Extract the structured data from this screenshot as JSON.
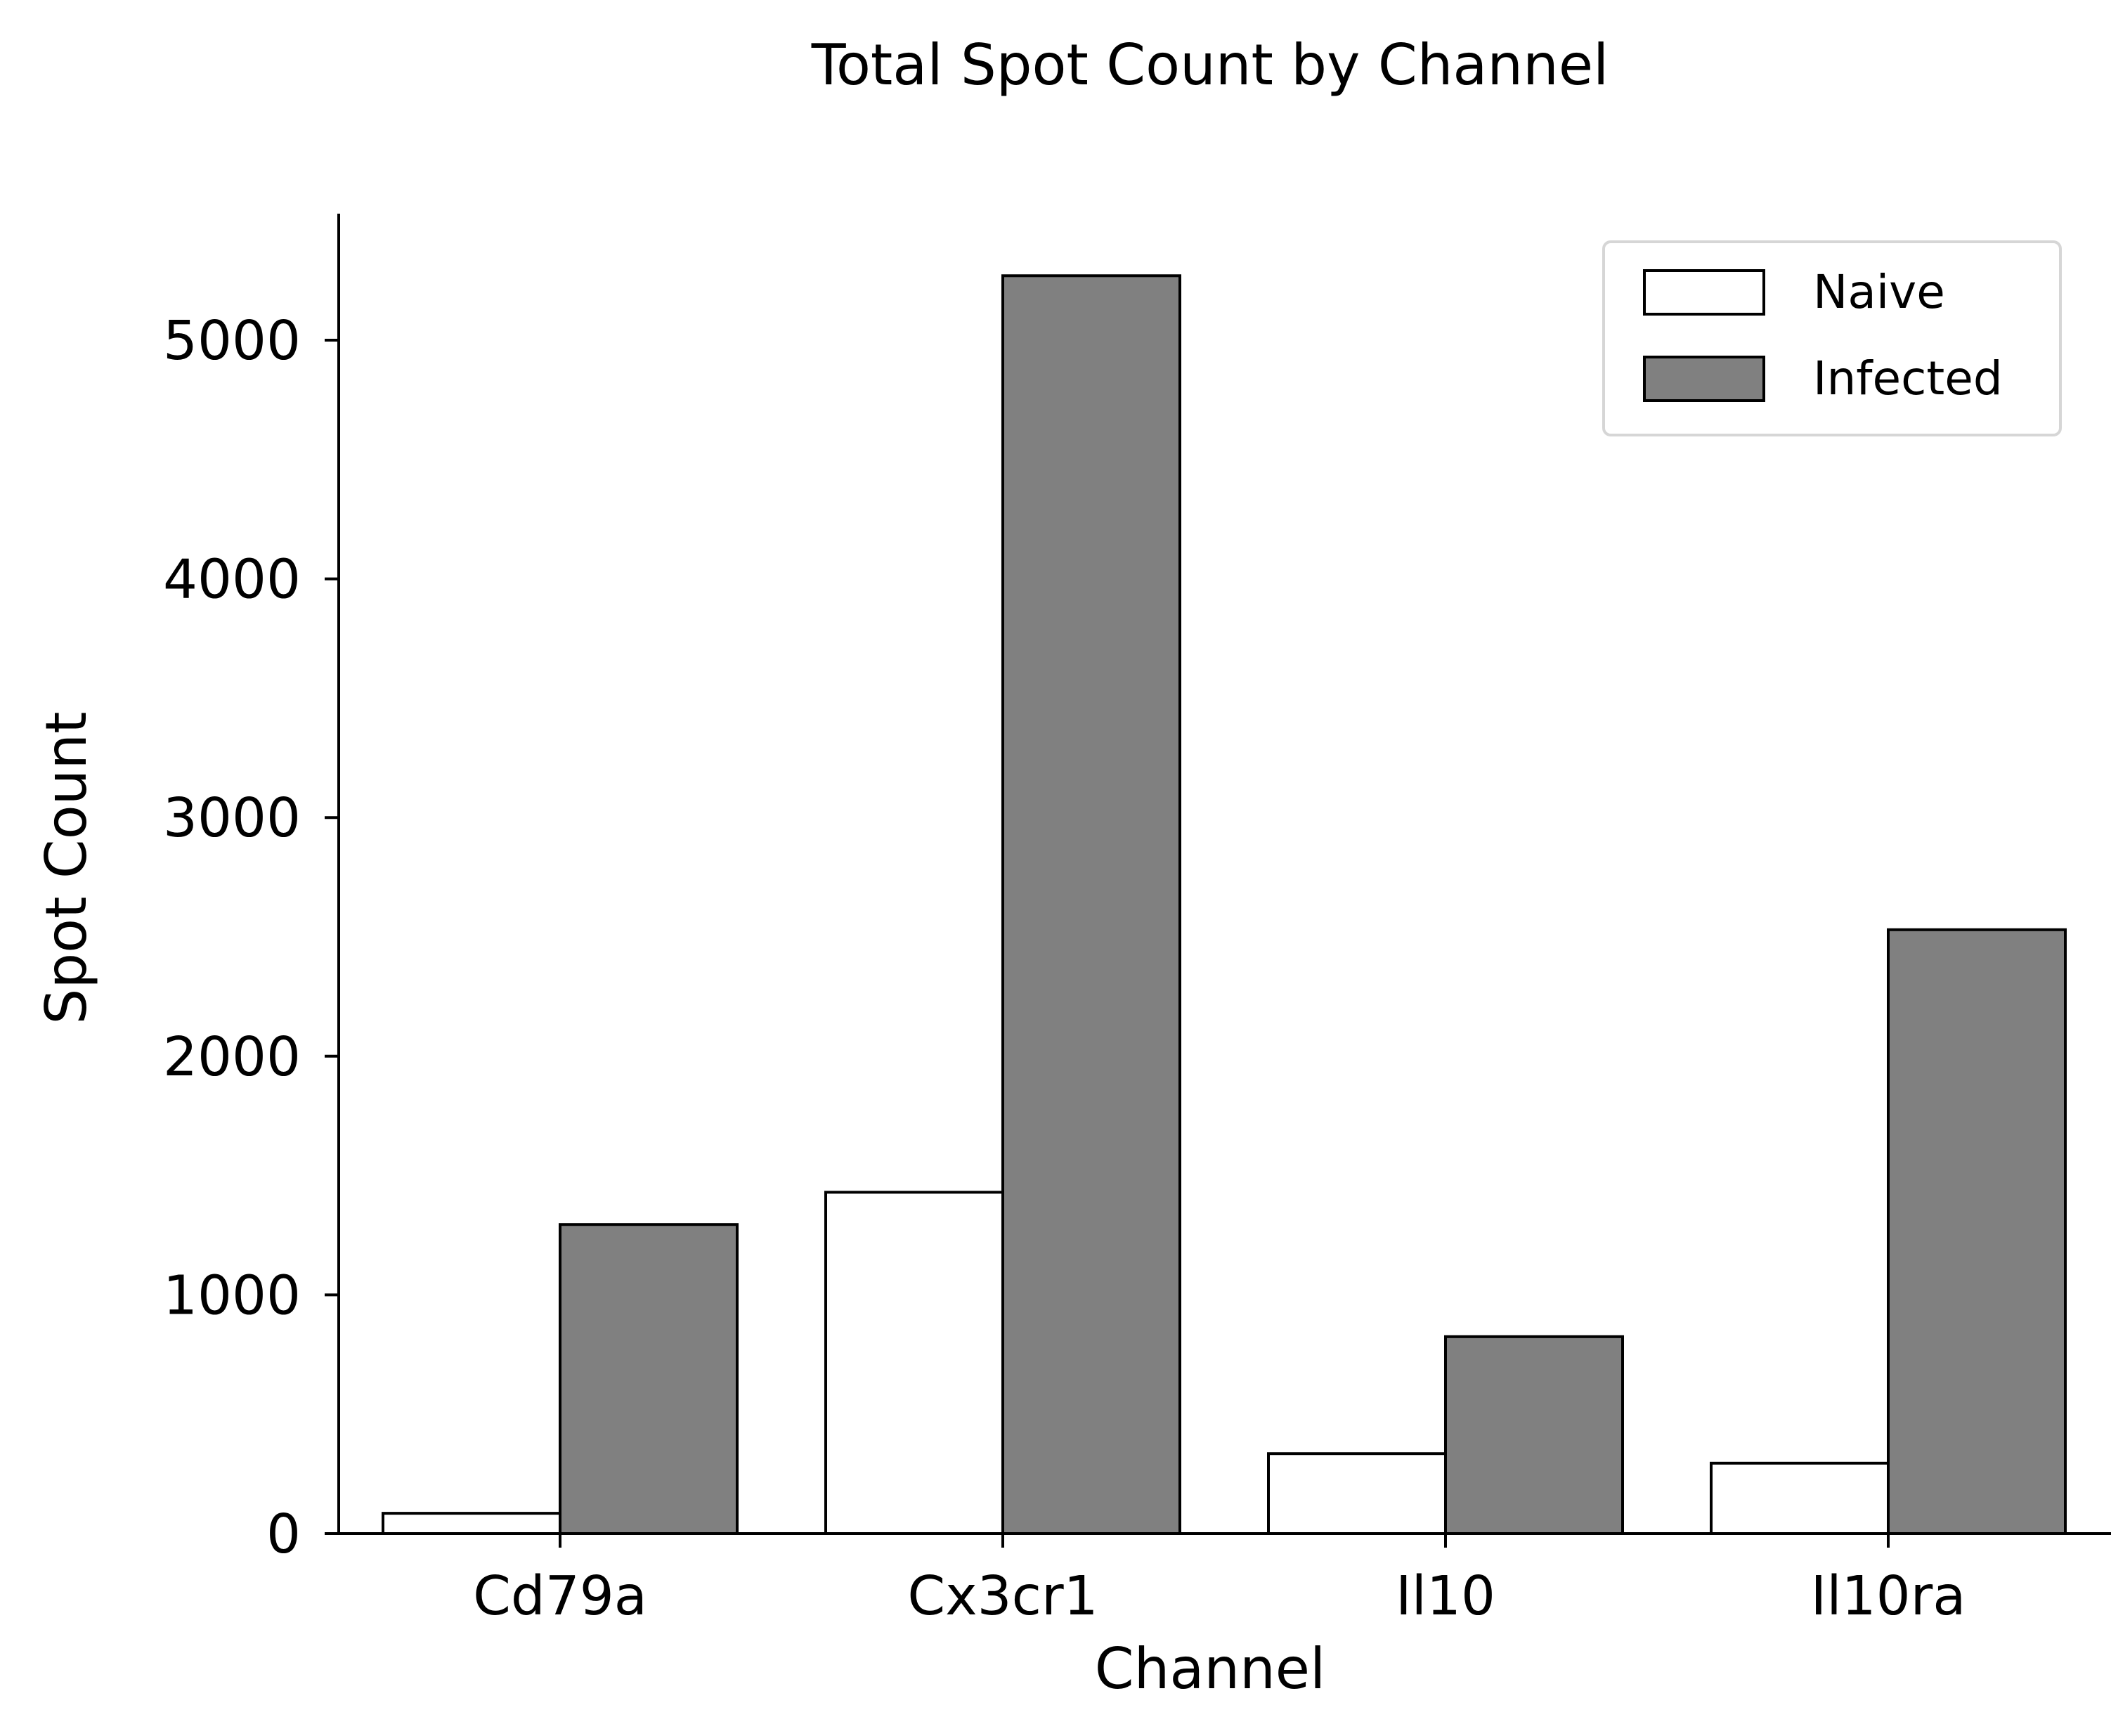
{
  "chart_data": {
    "type": "bar",
    "title": "Total Spot Count by Channel",
    "xlabel": "Channel",
    "ylabel": "Spot Count",
    "categories": [
      "Cd79a",
      "Cx3cr1",
      "Il10",
      "Il10ra"
    ],
    "series": [
      {
        "name": "Naive",
        "values": [
          85,
          1430,
          335,
          295
        ],
        "color": "#ffffff"
      },
      {
        "name": "Infected",
        "values": [
          1295,
          5270,
          825,
          2530
        ],
        "color": "#808080"
      }
    ],
    "ylim": [
      0,
      5530
    ],
    "yticks": [
      0,
      1000,
      2000,
      3000,
      4000,
      5000
    ],
    "ytick_labels": [
      "0",
      "1000",
      "2000",
      "3000",
      "4000",
      "5000"
    ],
    "grid": false,
    "legend_position": "top-right",
    "edge_color": "#000000"
  }
}
